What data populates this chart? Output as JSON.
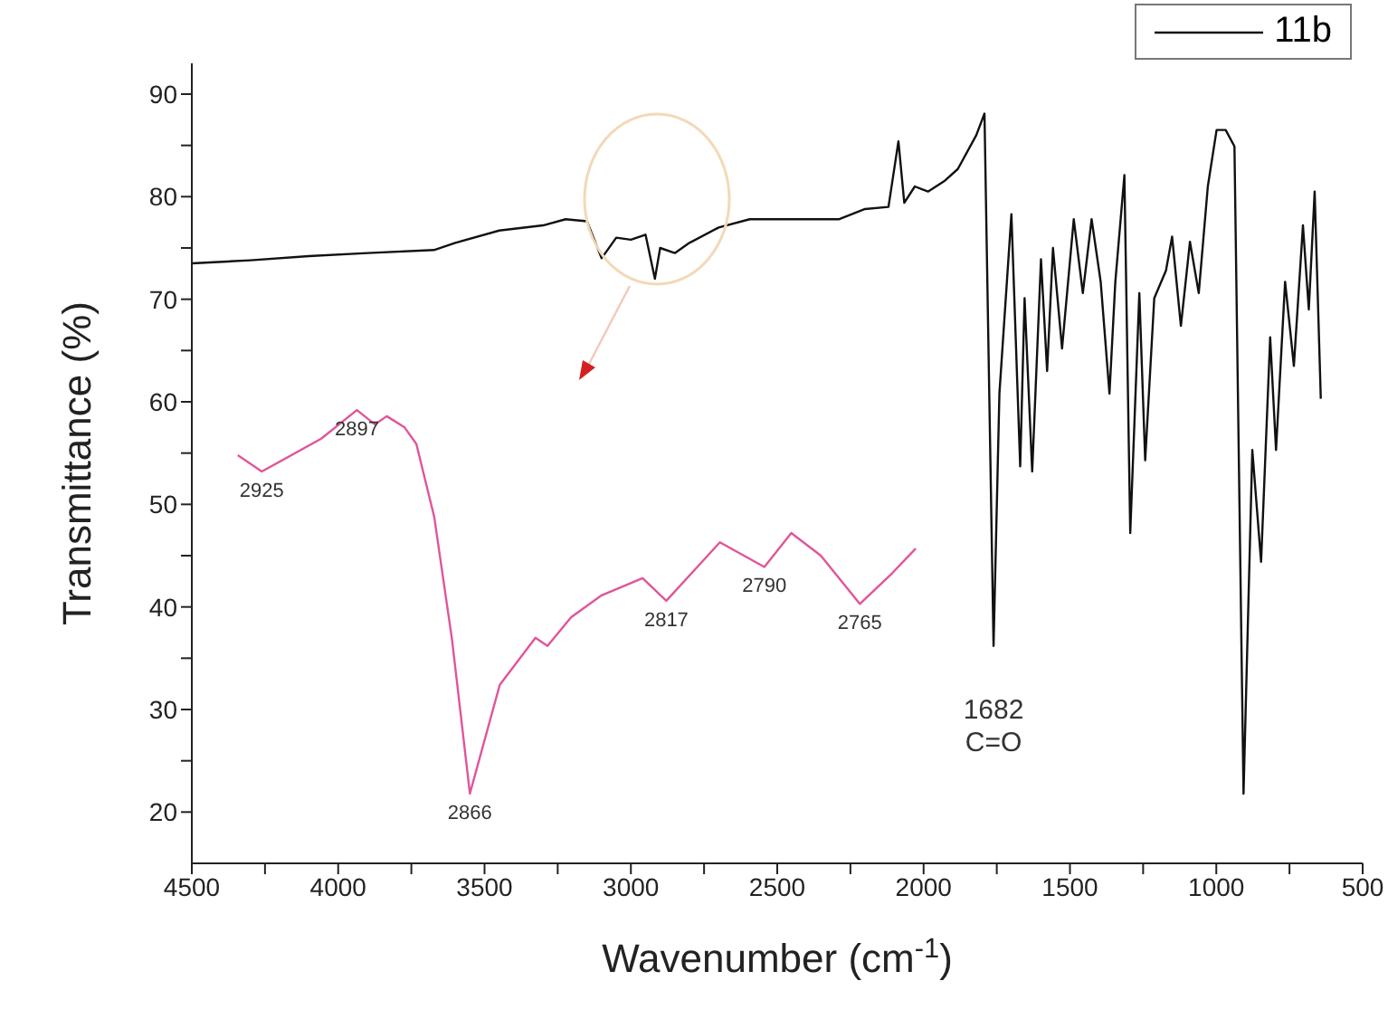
{
  "chart_data": {
    "type": "line",
    "xlabel": "Wavenumber (cm$^{-1}$)",
    "ylabel": "Transmittance (%)",
    "xlim": [
      4500,
      500
    ],
    "ylim": [
      15,
      93
    ],
    "xticks": [
      4500,
      {
        "value": 4250,
        "label": null
      },
      4000,
      {
        "value": 3750,
        "label": null
      },
      3500,
      {
        "value": 3250,
        "label": null
      },
      3000,
      {
        "value": 2750,
        "label": null
      },
      2500,
      {
        "value": 2250,
        "label": null
      },
      2000,
      {
        "value": 1750,
        "label": null
      },
      1500,
      {
        "value": 1250,
        "label": null
      },
      1000,
      {
        "value": 750,
        "label": null
      },
      500
    ],
    "yticks": [
      20,
      {
        "value": 25,
        "label": null
      },
      30,
      {
        "value": 35,
        "label": null
      },
      40,
      {
        "value": 45,
        "label": null
      },
      50,
      {
        "value": 55,
        "label": null
      },
      60,
      {
        "value": 65,
        "label": null
      },
      70,
      {
        "value": 75,
        "label": null
      },
      80,
      {
        "value": 85,
        "label": null
      },
      90
    ],
    "legend": "top right",
    "marker": "none",
    "line_style": "solid",
    "series": [
      {
        "name": "11b",
        "color": "#111111",
        "x": [
          4500,
          4300,
          4100,
          3900,
          3673,
          3600,
          3450,
          3300,
          3223,
          3150,
          3100,
          3050,
          3000,
          2950,
          2918,
          2900,
          2850,
          2800,
          2700,
          2594,
          2450,
          2290,
          2200,
          2120,
          2086,
          2066,
          2030,
          1985,
          1930,
          1883,
          1820,
          1792,
          1761,
          1741,
          1700,
          1670,
          1655,
          1629,
          1599,
          1578,
          1558,
          1527,
          1487,
          1456,
          1426,
          1395,
          1365,
          1345,
          1314,
          1294,
          1263,
          1243,
          1212,
          1172,
          1151,
          1121,
          1090,
          1060,
          1029,
          999,
          968,
          938,
          907,
          877,
          847,
          816,
          796,
          765,
          735,
          704,
          684,
          664,
          643
        ],
        "values": [
          73.5,
          73.8,
          74.2,
          74.5,
          74.8,
          75.5,
          76.7,
          77.2,
          77.8,
          77.6,
          74,
          76,
          75.8,
          76.3,
          72,
          75,
          74.5,
          75.5,
          77,
          77.8,
          77.8,
          77.8,
          78.8,
          79,
          85.4,
          79.4,
          81,
          80.5,
          81.5,
          82.7,
          86,
          88.1,
          36.2,
          60.8,
          78.3,
          53.7,
          70.1,
          53.2,
          73.9,
          63,
          75,
          65.2,
          77.8,
          70.6,
          77.8,
          71.7,
          60.8,
          71.7,
          82.1,
          47.2,
          70.6,
          54.3,
          70.1,
          72.8,
          76.1,
          67.4,
          75.6,
          70.6,
          81,
          86.5,
          86.5,
          84.9,
          21.8,
          55.3,
          44.4,
          66.3,
          55.3,
          71.7,
          63.5,
          77.2,
          69,
          80.5,
          60.3
        ]
      },
      {
        "color": "#e0559a",
        "x": [
          4343,
          4261,
          4058,
          3936,
          3875,
          3834,
          3773,
          3733,
          3672,
          3611,
          3550,
          3448,
          3326,
          3285,
          3204,
          3102,
          2960,
          2879,
          2696,
          2544,
          2452,
          2351,
          2218,
          2107,
          2027
        ],
        "values": [
          54.8,
          53.2,
          56.4,
          59.2,
          57.8,
          58.6,
          57.5,
          55.9,
          48.8,
          36.8,
          21.8,
          32.4,
          37,
          36.2,
          39,
          41.1,
          42.8,
          40.6,
          46.3,
          43.9,
          47.2,
          45,
          40.3,
          43.3,
          45.7
        ]
      }
    ],
    "annotations": [
      {
        "text": "2925",
        "x": 4261,
        "y": 53.2
      },
      {
        "text": "2897",
        "x": 3936,
        "y": 59.2
      },
      {
        "text": "2866",
        "x": 3550,
        "y": 21.8
      },
      {
        "text": "2817",
        "x": 2879,
        "y": 40.6
      },
      {
        "text": "2790",
        "x": 2544,
        "y": 43.9
      },
      {
        "text": "2765",
        "x": 2218,
        "y": 40.3
      },
      {
        "text": "1682\nC=O",
        "x": 1761,
        "y": 36.2
      }
    ]
  }
}
